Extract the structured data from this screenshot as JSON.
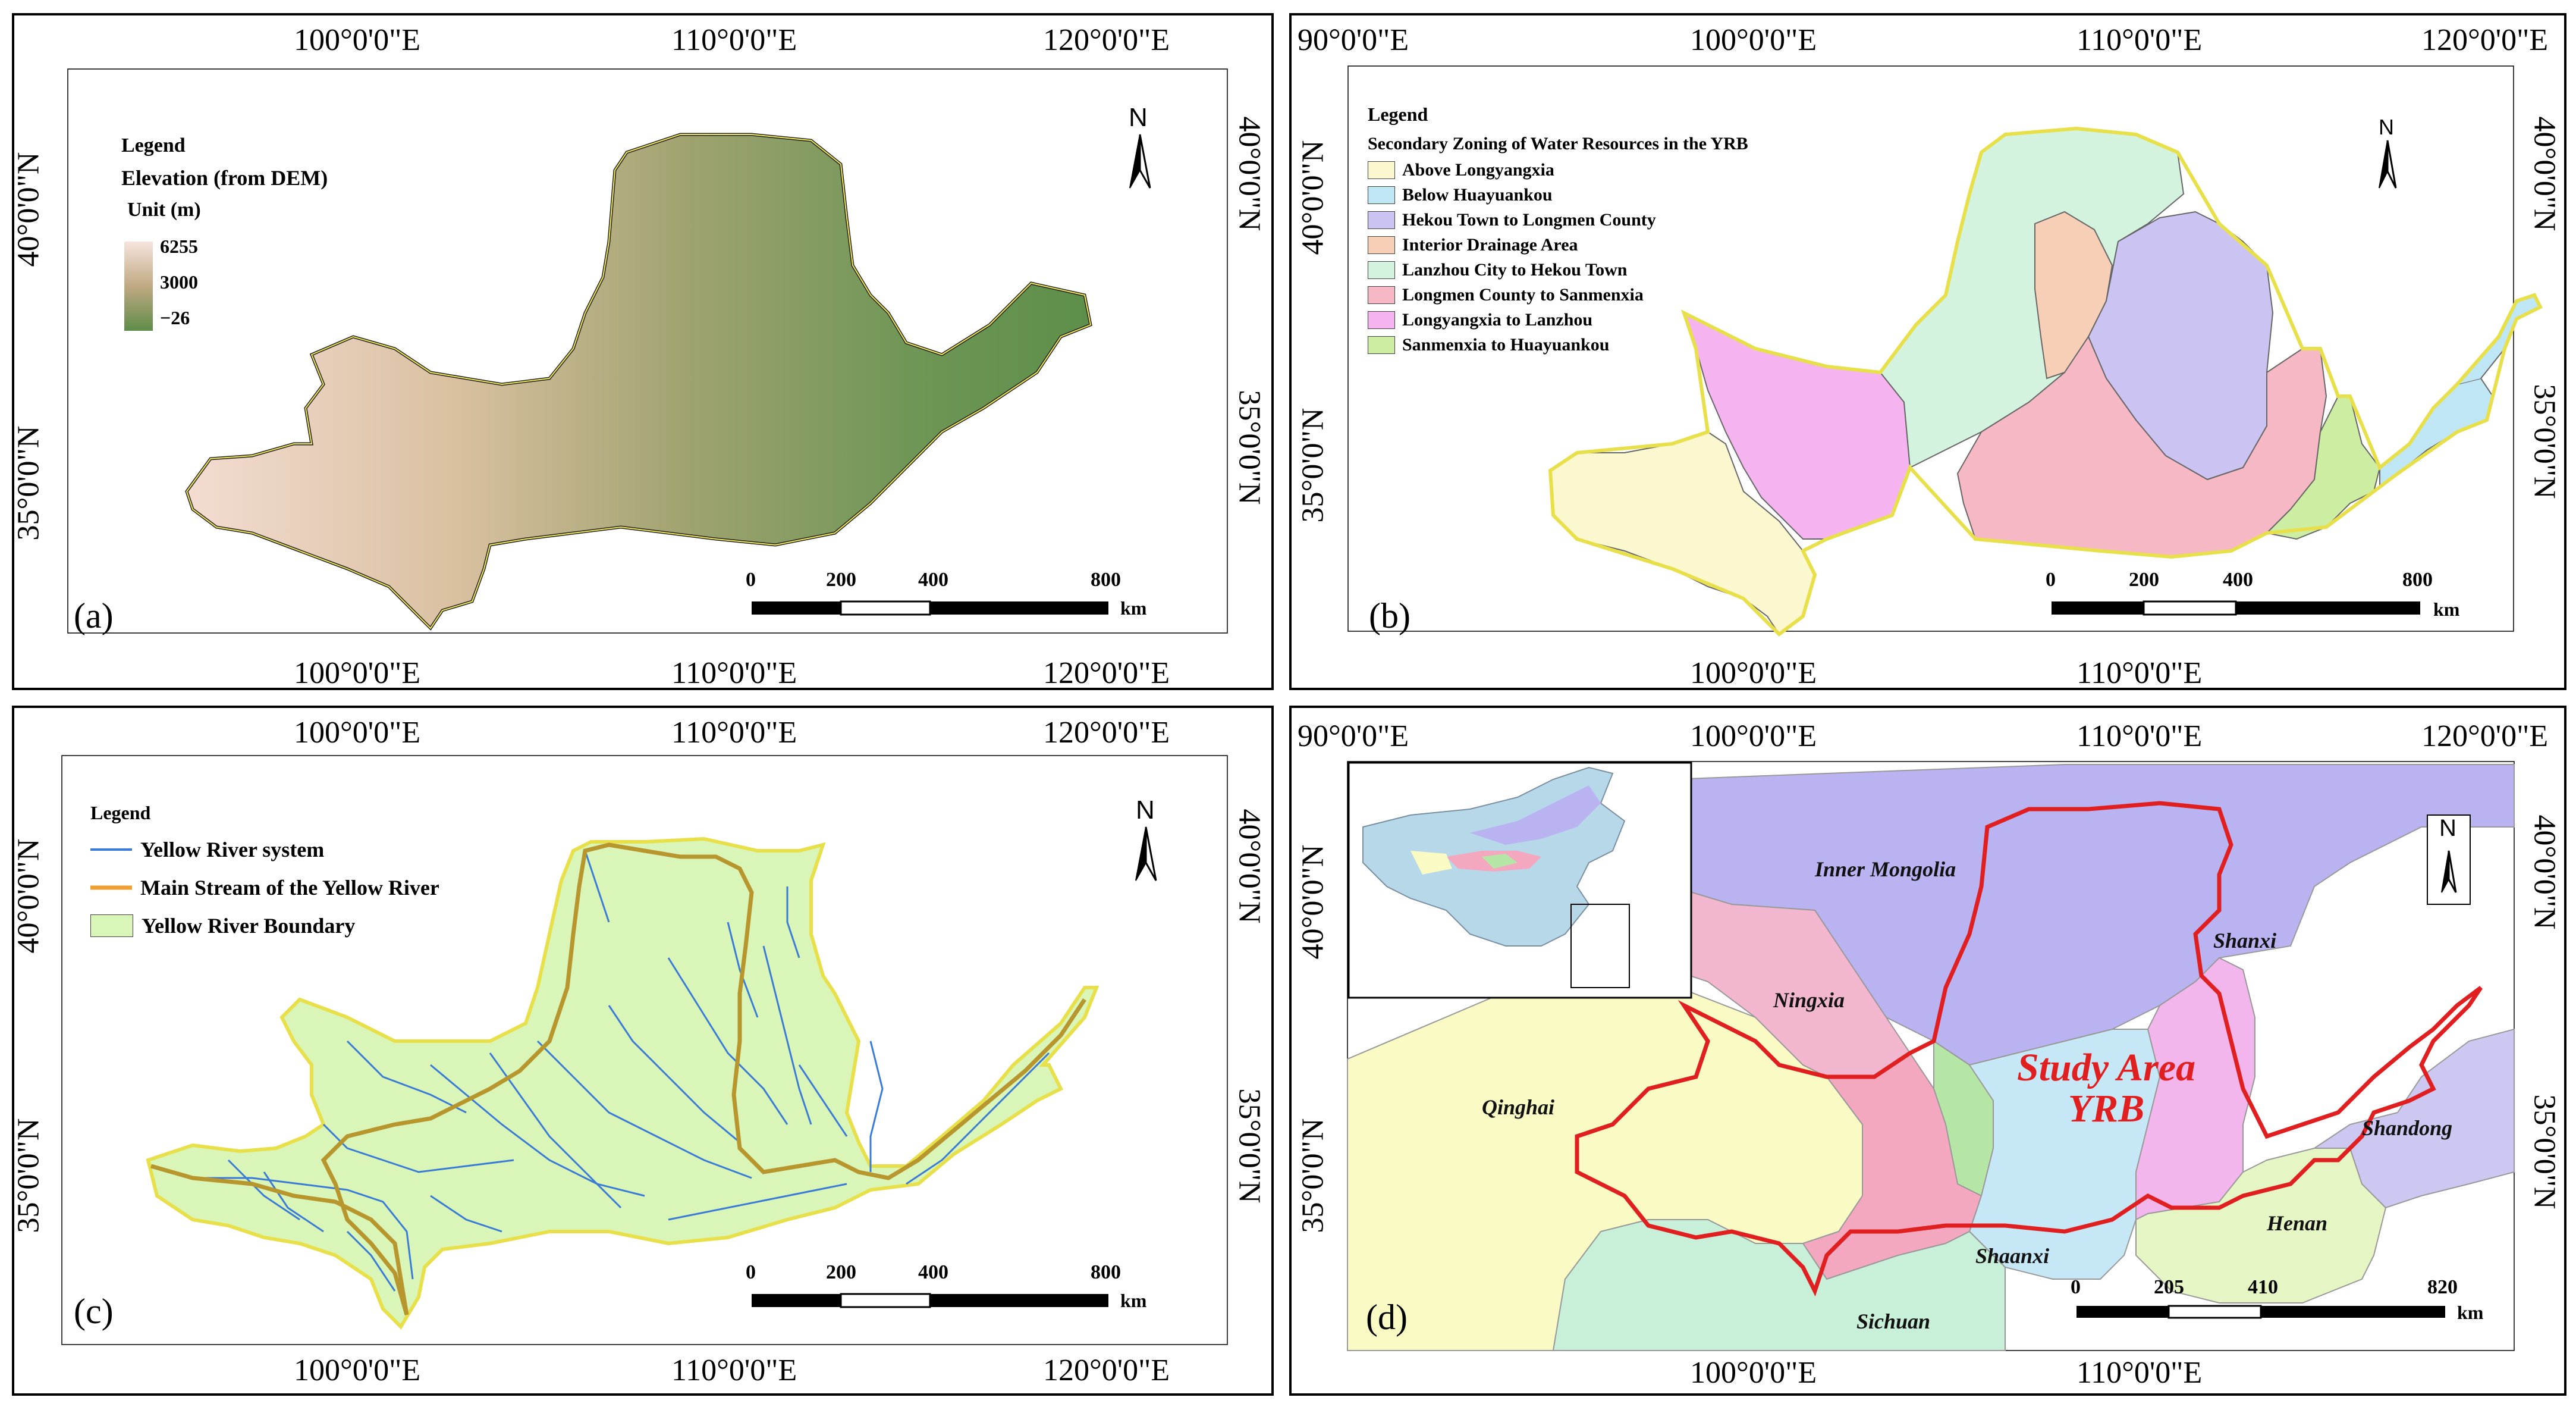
{
  "panel_a": {
    "label": "(a)",
    "top_coords": [
      "100°0'0\"E",
      "110°0'0\"E",
      "120°0'0\"E"
    ],
    "bottom_coords": [
      "100°0'0\"E",
      "110°0'0\"E",
      "120°0'0\"E"
    ],
    "left_coords": [
      "40°0'0\"N",
      "35°0'0\"N"
    ],
    "right_coords": [
      "40°0'0\"N",
      "35°0'0\"N"
    ],
    "legend": {
      "title": "Legend",
      "subtitle": "Elevation (from DEM)",
      "unit": "Unit (m)",
      "values": [
        "6255",
        "3000",
        "−26"
      ]
    },
    "north": "N",
    "scale": {
      "ticks": [
        "0",
        "200",
        "400",
        "800"
      ],
      "unit": "km"
    }
  },
  "panel_b": {
    "label": "(b)",
    "top_coords": [
      "90°0'0\"E",
      "100°0'0\"E",
      "110°0'0\"E",
      "120°0'0\"E"
    ],
    "bottom_coords": [
      "100°0'0\"E",
      "110°0'0\"E"
    ],
    "left_coords": [
      "40°0'0\"N",
      "35°0'0\"N"
    ],
    "right_coords": [
      "40°0'0\"N",
      "35°0'0\"N"
    ],
    "legend": {
      "title": "Legend",
      "subtitle": "Secondary Zoning of Water Resources in the YRB",
      "items": [
        {
          "label": "Above Longyangxia",
          "color": "#fbf7cf"
        },
        {
          "label": "Below Huayuankou",
          "color": "#bfe6f4"
        },
        {
          "label": "Hekou Town to Longmen County",
          "color": "#cbc4f2"
        },
        {
          "label": "Interior Drainage Area",
          "color": "#f6cfb6"
        },
        {
          "label": "Lanzhou City to Hekou Town",
          "color": "#d3f3df"
        },
        {
          "label": "Longmen County to Sanmenxia",
          "color": "#f6b8c4"
        },
        {
          "label": "Longyangxia to Lanzhou",
          "color": "#f5b3f0"
        },
        {
          "label": "Sanmenxia to Huayuankou",
          "color": "#cdeea2"
        }
      ]
    },
    "north": "N",
    "scale": {
      "ticks": [
        "0",
        "200",
        "400",
        "800"
      ],
      "unit": "km"
    }
  },
  "panel_c": {
    "label": "(c)",
    "top_coords": [
      "100°0'0\"E",
      "110°0'0\"E",
      "120°0'0\"E"
    ],
    "bottom_coords": [
      "100°0'0\"E",
      "110°0'0\"E",
      "120°0'0\"E"
    ],
    "left_coords": [
      "40°0'0\"N",
      "35°0'0\"N"
    ],
    "right_coords": [
      "40°0'0\"N",
      "35°0'0\"N"
    ],
    "legend": {
      "title": "Legend",
      "items": [
        {
          "label": "Yellow River system",
          "color": "#3a7bd5"
        },
        {
          "label": "Main Stream of the Yellow River",
          "color": "#f0a030"
        },
        {
          "label": "Yellow River Boundary",
          "color": "#d9f5b8"
        }
      ]
    },
    "north": "N",
    "scale": {
      "ticks": [
        "0",
        "200",
        "400",
        "800"
      ],
      "unit": "km"
    }
  },
  "panel_d": {
    "label": "(d)",
    "top_coords": [
      "90°0'0\"E",
      "100°0'0\"E",
      "110°0'0\"E",
      "120°0'0\"E"
    ],
    "bottom_coords": [
      "100°0'0\"E",
      "110°0'0\"E"
    ],
    "left_coords": [
      "40°0'0\"N",
      "35°0'0\"N"
    ],
    "right_coords": [
      "40°0'0\"N",
      "35°0'0\"N"
    ],
    "places": [
      "Inner Mongolia",
      "Ningxia",
      "Shanxi",
      "Qinghai",
      "Shandong",
      "Henan",
      "Shaanxi",
      "Sichuan"
    ],
    "study_area": [
      "Study Area",
      "YRB"
    ],
    "north": "N",
    "scale": {
      "ticks": [
        "0",
        "205",
        "410",
        "820"
      ],
      "unit": "km"
    }
  }
}
